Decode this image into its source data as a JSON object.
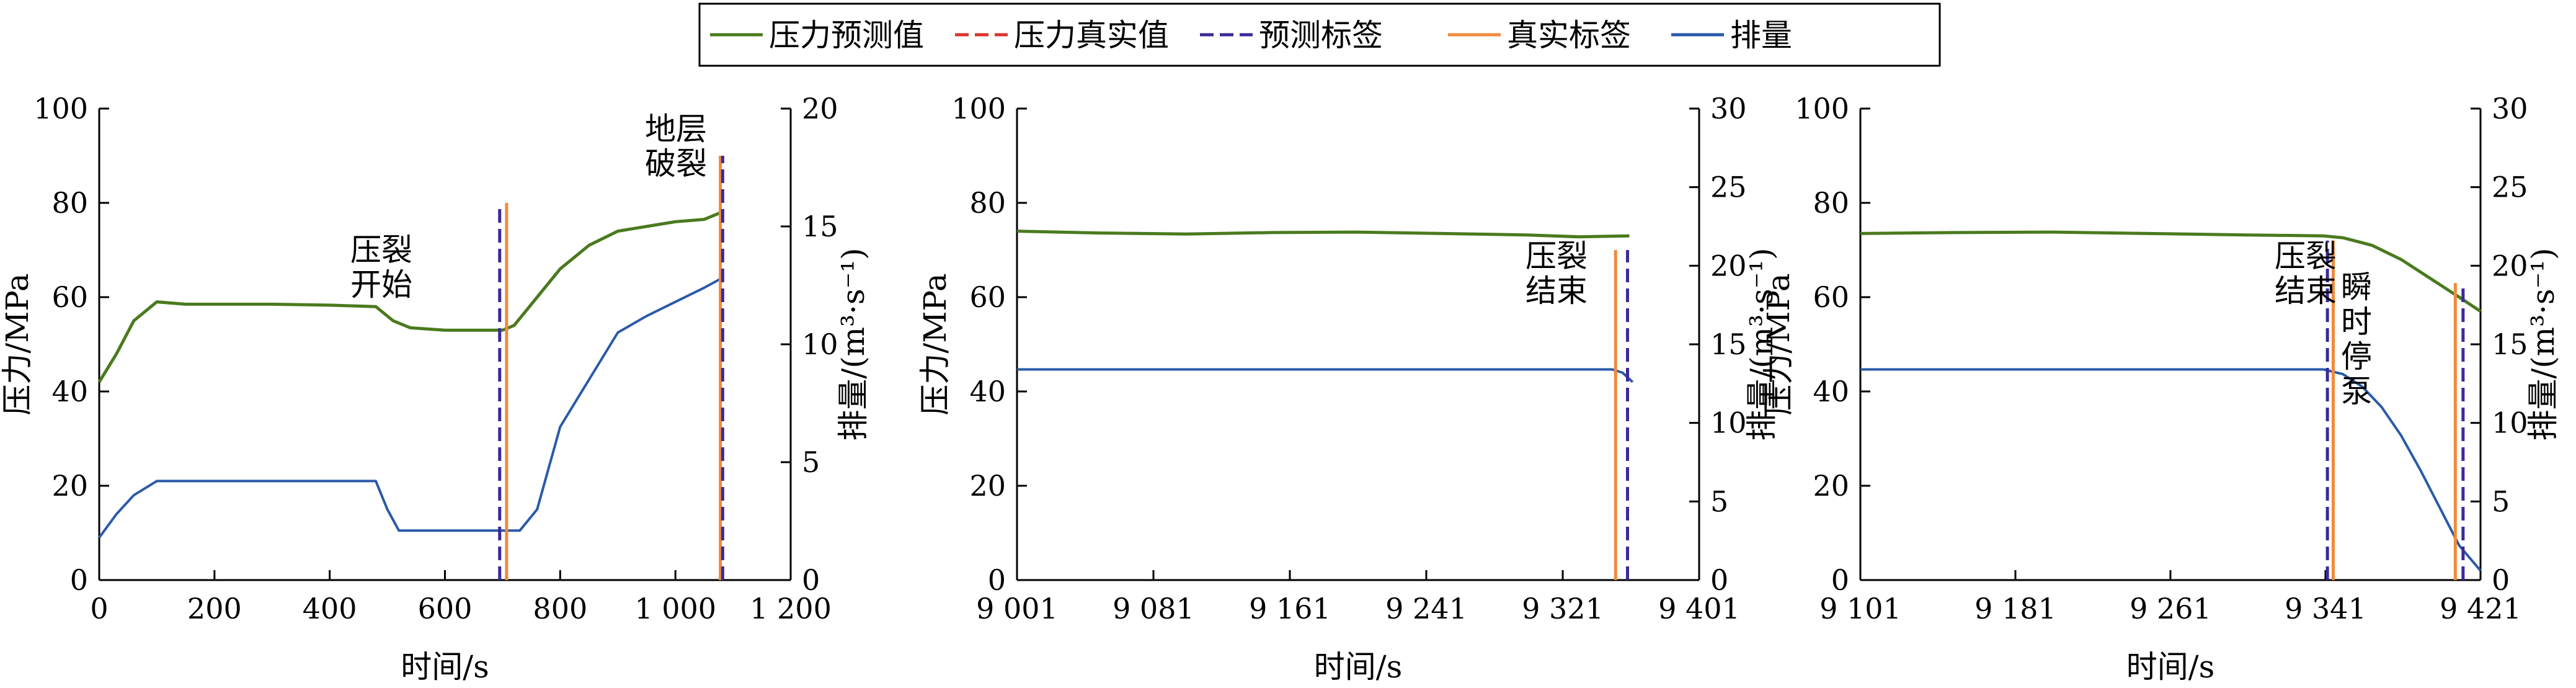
{
  "legend": [
    {
      "label": "压力预测值",
      "color": "#4a7a1e",
      "dash": "solid"
    },
    {
      "label": "压力真实值",
      "color": "#d9342b",
      "dash": "dash"
    },
    {
      "label": "预测标签",
      "color": "#3a2a9a",
      "dash": "dash"
    },
    {
      "label": "真实标签",
      "color": "#f08a3c",
      "dash": "solid"
    },
    {
      "label": "排量",
      "color": "#2a5aa8",
      "dash": "solid"
    }
  ],
  "chart_data": [
    {
      "type": "line",
      "xlabel": "时间/s",
      "ylabel_left": "压力/MPa",
      "ylabel_right": "排量/(m³·s⁻¹)",
      "xlim": [
        0,
        1200
      ],
      "ylim_left": [
        0,
        100
      ],
      "ylim_right": [
        0,
        20
      ],
      "xticks": [
        0,
        200,
        400,
        600,
        800,
        1000,
        1200
      ],
      "xtick_labels": [
        "0",
        "200",
        "400",
        "600",
        "800",
        "1 000",
        "1 200"
      ],
      "yticks_left": [
        0,
        20,
        40,
        60,
        80,
        100
      ],
      "yticks_right": [
        0,
        5,
        10,
        15,
        20
      ],
      "series": [
        {
          "name": "压力预测值",
          "axis": "left",
          "x": [
            0,
            30,
            60,
            100,
            150,
            200,
            300,
            400,
            480,
            510,
            540,
            600,
            700,
            720,
            760,
            800,
            850,
            900,
            950,
            1000,
            1050,
            1080
          ],
          "y": [
            42,
            48,
            55,
            59,
            58.5,
            58.5,
            58.5,
            58.3,
            58,
            55,
            53.5,
            53,
            53,
            54,
            60,
            66,
            71,
            74,
            75,
            76,
            76.5,
            78
          ]
        },
        {
          "name": "压力真实值",
          "axis": "left",
          "x": [
            0,
            30,
            60,
            100,
            150,
            200,
            300,
            400,
            480,
            510,
            540,
            600,
            700,
            720,
            760,
            800,
            850,
            900,
            950,
            1000,
            1050,
            1080
          ],
          "y": [
            42,
            48,
            55,
            59,
            58.5,
            58.5,
            58.5,
            58.3,
            58,
            55,
            53.5,
            53,
            53,
            54,
            60,
            66,
            71,
            74,
            75,
            76,
            76.5,
            78
          ]
        },
        {
          "name": "排量",
          "axis": "right",
          "x": [
            0,
            30,
            60,
            100,
            150,
            300,
            480,
            500,
            520,
            600,
            700,
            730,
            760,
            800,
            850,
            900,
            950,
            1000,
            1050,
            1080
          ],
          "y": [
            1.8,
            2.8,
            3.6,
            4.2,
            4.2,
            4.2,
            4.2,
            3.0,
            2.1,
            2.1,
            2.1,
            2.1,
            3.0,
            6.5,
            8.5,
            10.5,
            11.2,
            11.8,
            12.4,
            12.8
          ]
        }
      ],
      "label_lines": [
        {
          "name": "预测标签",
          "x": 695,
          "top": 80
        },
        {
          "name": "真实标签",
          "x": 707,
          "top": 80
        },
        {
          "name": "真实标签",
          "x": 1078,
          "top": 90
        },
        {
          "name": "预测标签",
          "x": 1082,
          "top": 90
        }
      ],
      "annotations": [
        {
          "lines": [
            "压裂",
            "开始"
          ]
        },
        {
          "lines": [
            "地层",
            "破裂"
          ]
        }
      ]
    },
    {
      "type": "line",
      "xlabel": "时间/s",
      "ylabel_left": "压力/MPa",
      "ylabel_right": "排量/(m³·s⁻¹)",
      "xlim": [
        9001,
        9401
      ],
      "ylim_left": [
        0,
        100
      ],
      "ylim_right": [
        0,
        30
      ],
      "xticks": [
        9001,
        9081,
        9161,
        9241,
        9321,
        9401
      ],
      "xtick_labels": [
        "9 001",
        "9 081",
        "9 161",
        "9 241",
        "9 321",
        "9 401"
      ],
      "yticks_left": [
        0,
        20,
        40,
        60,
        80,
        100
      ],
      "yticks_right": [
        0,
        5,
        10,
        15,
        20,
        25,
        30
      ],
      "series": [
        {
          "name": "压力预测值",
          "axis": "left",
          "x": [
            9001,
            9050,
            9100,
            9150,
            9200,
            9250,
            9300,
            9330,
            9360
          ],
          "y": [
            74,
            73.6,
            73.4,
            73.7,
            73.8,
            73.5,
            73.2,
            72.8,
            73
          ]
        },
        {
          "name": "压力真实值",
          "axis": "left",
          "x": [
            9001,
            9050,
            9100,
            9150,
            9200,
            9250,
            9300,
            9330,
            9360
          ],
          "y": [
            74,
            73.6,
            73.4,
            73.7,
            73.8,
            73.5,
            73.2,
            72.8,
            73
          ]
        },
        {
          "name": "排量",
          "axis": "right",
          "x": [
            9001,
            9100,
            9200,
            9300,
            9350,
            9356,
            9362
          ],
          "y": [
            13.4,
            13.4,
            13.4,
            13.4,
            13.4,
            13.2,
            12.6
          ]
        }
      ],
      "label_lines": [
        {
          "name": "真实标签",
          "x": 9352,
          "top": 70
        },
        {
          "name": "预测标签",
          "x": 9359,
          "top": 70
        }
      ],
      "annotations": [
        {
          "lines": [
            "压裂",
            "结束"
          ]
        }
      ]
    },
    {
      "type": "line",
      "xlabel": "时间/s",
      "ylabel_left": "压力/MPa",
      "ylabel_right": "排量/(m³·s⁻¹)",
      "xlim": [
        9101,
        9421
      ],
      "ylim_left": [
        0,
        100
      ],
      "ylim_right": [
        0,
        30
      ],
      "xticks": [
        9101,
        9181,
        9261,
        9341,
        9421
      ],
      "xtick_labels": [
        "9 101",
        "9 181",
        "9 261",
        "9 341",
        "9 421"
      ],
      "yticks_left": [
        0,
        20,
        40,
        60,
        80,
        100
      ],
      "yticks_right": [
        0,
        5,
        10,
        15,
        20,
        25,
        30
      ],
      "series": [
        {
          "name": "压力预测值",
          "axis": "left",
          "x": [
            9101,
            9150,
            9200,
            9250,
            9300,
            9340,
            9350,
            9365,
            9380,
            9395,
            9410,
            9421
          ],
          "y": [
            73.5,
            73.7,
            73.8,
            73.5,
            73.2,
            73,
            72.6,
            71,
            68,
            64,
            60,
            57
          ]
        },
        {
          "name": "压力真实值",
          "axis": "left",
          "x": [
            9101,
            9150,
            9200,
            9250,
            9300,
            9340,
            9350,
            9365,
            9380,
            9395,
            9410,
            9421
          ],
          "y": [
            73.5,
            73.7,
            73.8,
            73.5,
            73.2,
            73,
            72.6,
            71,
            68,
            64,
            60,
            57
          ]
        },
        {
          "name": "排量",
          "axis": "right",
          "x": [
            9101,
            9200,
            9300,
            9340,
            9350,
            9360,
            9370,
            9380,
            9390,
            9400,
            9410,
            9421
          ],
          "y": [
            13.4,
            13.4,
            13.4,
            13.4,
            13.1,
            12.3,
            11,
            9.2,
            7,
            4.6,
            2.2,
            0.6
          ]
        }
      ],
      "label_lines": [
        {
          "name": "预测标签",
          "x": 9342,
          "top": 72
        },
        {
          "name": "真实标签",
          "x": 9345,
          "top": 72
        },
        {
          "name": "真实标签",
          "x": 9408,
          "top": 63
        },
        {
          "name": "预测标签",
          "x": 9412,
          "top": 63
        }
      ],
      "annotations": [
        {
          "lines": [
            "压裂",
            "结束"
          ]
        },
        {
          "lines": [
            "瞬",
            "时",
            "停",
            "泵"
          ]
        }
      ]
    }
  ]
}
